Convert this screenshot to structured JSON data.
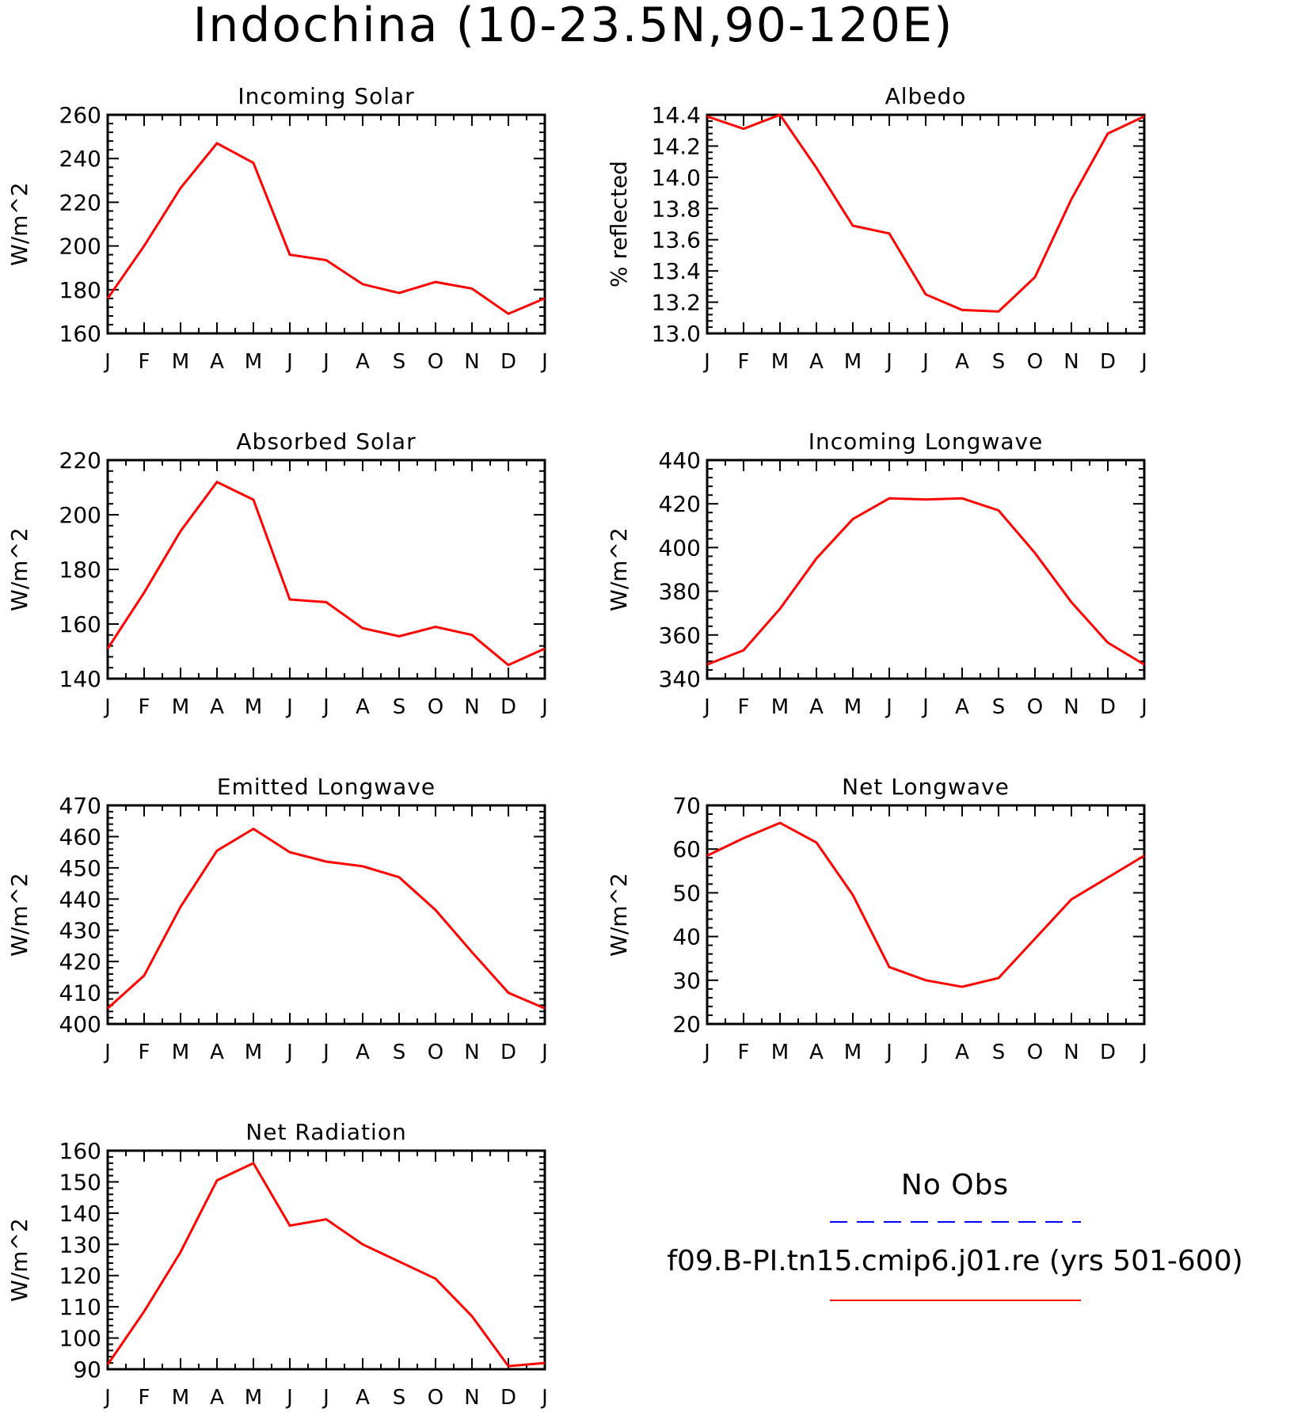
{
  "title": "Indochina (10-23.5N,90-120E)",
  "colors": {
    "model": "#ff0000",
    "obs": "#0000ff",
    "axis": "#000000"
  },
  "legend": {
    "obs_label": "No Obs",
    "model_label": "f09.B-PI.tn15.cmip6.j01.re (yrs 501-600)"
  },
  "chart_data": [
    {
      "type": "line",
      "title": "Incoming Solar",
      "ylabel": "W/m^2",
      "ylim": [
        160,
        260
      ],
      "yticks": [
        160,
        180,
        200,
        220,
        240,
        260
      ],
      "yticklabels": [
        "160",
        "180",
        "200",
        "220",
        "240",
        "260"
      ],
      "categories": [
        "J",
        "F",
        "M",
        "A",
        "M",
        "J",
        "J",
        "A",
        "S",
        "O",
        "N",
        "D",
        "J"
      ],
      "series": [
        {
          "values": [
            176,
            200,
            226.5,
            247,
            238,
            196,
            193.5,
            182.5,
            178.5,
            183.5,
            180.5,
            169,
            176
          ]
        }
      ]
    },
    {
      "type": "line",
      "title": "Albedo",
      "ylabel": "% reflected",
      "ylim": [
        13.0,
        14.4
      ],
      "yticks": [
        13.0,
        13.2,
        13.4,
        13.6,
        13.8,
        14.0,
        14.2,
        14.4
      ],
      "yticklabels": [
        "13.0",
        "13.2",
        "13.4",
        "13.6",
        "13.8",
        "14.0",
        "14.2",
        "14.4"
      ],
      "categories": [
        "J",
        "F",
        "M",
        "A",
        "M",
        "J",
        "J",
        "A",
        "S",
        "O",
        "N",
        "D",
        "J"
      ],
      "series": [
        {
          "values": [
            14.39,
            14.31,
            14.4,
            14.06,
            13.69,
            13.64,
            13.25,
            13.15,
            13.14,
            13.36,
            13.86,
            14.28,
            14.39
          ]
        }
      ]
    },
    {
      "type": "line",
      "title": "Absorbed Solar",
      "ylabel": "W/m^2",
      "ylim": [
        140,
        220
      ],
      "yticks": [
        140,
        160,
        180,
        200,
        220
      ],
      "yticklabels": [
        "140",
        "160",
        "180",
        "200",
        "220"
      ],
      "categories": [
        "J",
        "F",
        "M",
        "A",
        "M",
        "J",
        "J",
        "A",
        "S",
        "O",
        "N",
        "D",
        "J"
      ],
      "series": [
        {
          "values": [
            151,
            171.5,
            194,
            212,
            205.5,
            169,
            168,
            158.5,
            155.5,
            159,
            156,
            145,
            151
          ]
        }
      ]
    },
    {
      "type": "line",
      "title": "Incoming Longwave",
      "ylabel": "W/m^2",
      "ylim": [
        340,
        440
      ],
      "yticks": [
        340,
        360,
        380,
        400,
        420,
        440
      ],
      "yticklabels": [
        "340",
        "360",
        "380",
        "400",
        "420",
        "440"
      ],
      "categories": [
        "J",
        "F",
        "M",
        "A",
        "M",
        "J",
        "J",
        "A",
        "S",
        "O",
        "N",
        "D",
        "J"
      ],
      "series": [
        {
          "values": [
            346.5,
            353,
            372,
            395,
            413,
            422.5,
            422,
            422.5,
            417,
            397.5,
            375,
            356.5,
            346.5
          ]
        }
      ]
    },
    {
      "type": "line",
      "title": "Emitted Longwave",
      "ylabel": "W/m^2",
      "ylim": [
        400,
        470
      ],
      "yticks": [
        400,
        410,
        420,
        430,
        440,
        450,
        460,
        470
      ],
      "yticklabels": [
        "400",
        "410",
        "420",
        "430",
        "440",
        "450",
        "460",
        "470"
      ],
      "categories": [
        "J",
        "F",
        "M",
        "A",
        "M",
        "J",
        "J",
        "A",
        "S",
        "O",
        "N",
        "D",
        "J"
      ],
      "series": [
        {
          "values": [
            405,
            415.5,
            437.5,
            455.5,
            462.5,
            455,
            452,
            450.5,
            447,
            436.5,
            423,
            410,
            405
          ]
        }
      ]
    },
    {
      "type": "line",
      "title": "Net Longwave",
      "ylabel": "W/m^2",
      "ylim": [
        20,
        70
      ],
      "yticks": [
        20,
        30,
        40,
        50,
        60,
        70
      ],
      "yticklabels": [
        "20",
        "30",
        "40",
        "50",
        "60",
        "70"
      ],
      "categories": [
        "J",
        "F",
        "M",
        "A",
        "M",
        "J",
        "J",
        "A",
        "S",
        "O",
        "N",
        "D",
        "J"
      ],
      "series": [
        {
          "values": [
            58.5,
            62.5,
            66,
            61.5,
            49.5,
            33,
            30,
            28.5,
            30.5,
            39.5,
            48.5,
            53.5,
            58.5
          ]
        }
      ]
    },
    {
      "type": "line",
      "title": "Net Radiation",
      "ylabel": "W/m^2",
      "ylim": [
        90,
        160
      ],
      "yticks": [
        90,
        100,
        110,
        120,
        130,
        140,
        150,
        160
      ],
      "yticklabels": [
        "90",
        "100",
        "110",
        "120",
        "130",
        "140",
        "150",
        "160"
      ],
      "categories": [
        "J",
        "F",
        "M",
        "A",
        "M",
        "J",
        "J",
        "A",
        "S",
        "O",
        "N",
        "D",
        "J"
      ],
      "series": [
        {
          "values": [
            91.5,
            108.5,
            127.5,
            150.5,
            156,
            136,
            138,
            130,
            124.5,
            119,
            107,
            91,
            92
          ]
        }
      ]
    }
  ]
}
